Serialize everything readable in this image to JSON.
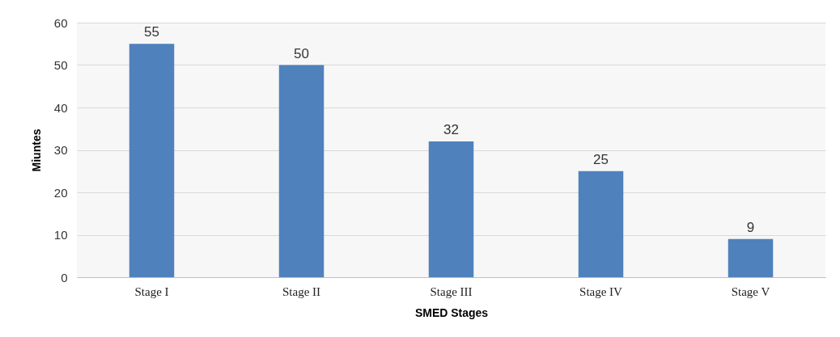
{
  "chart_data": {
    "type": "bar",
    "xlabel": "SMED Stages",
    "ylabel": "Miuntes",
    "categories": [
      "Stage I",
      "Stage II",
      "Stage III",
      "Stage IV",
      "Stage V"
    ],
    "values": [
      55,
      50,
      32,
      25,
      9
    ],
    "color": "#4f81bd",
    "ylim": [
      0,
      60
    ],
    "yticks": [
      0,
      10,
      20,
      30,
      40,
      50,
      60
    ],
    "grid": "y",
    "data_labels": true
  }
}
